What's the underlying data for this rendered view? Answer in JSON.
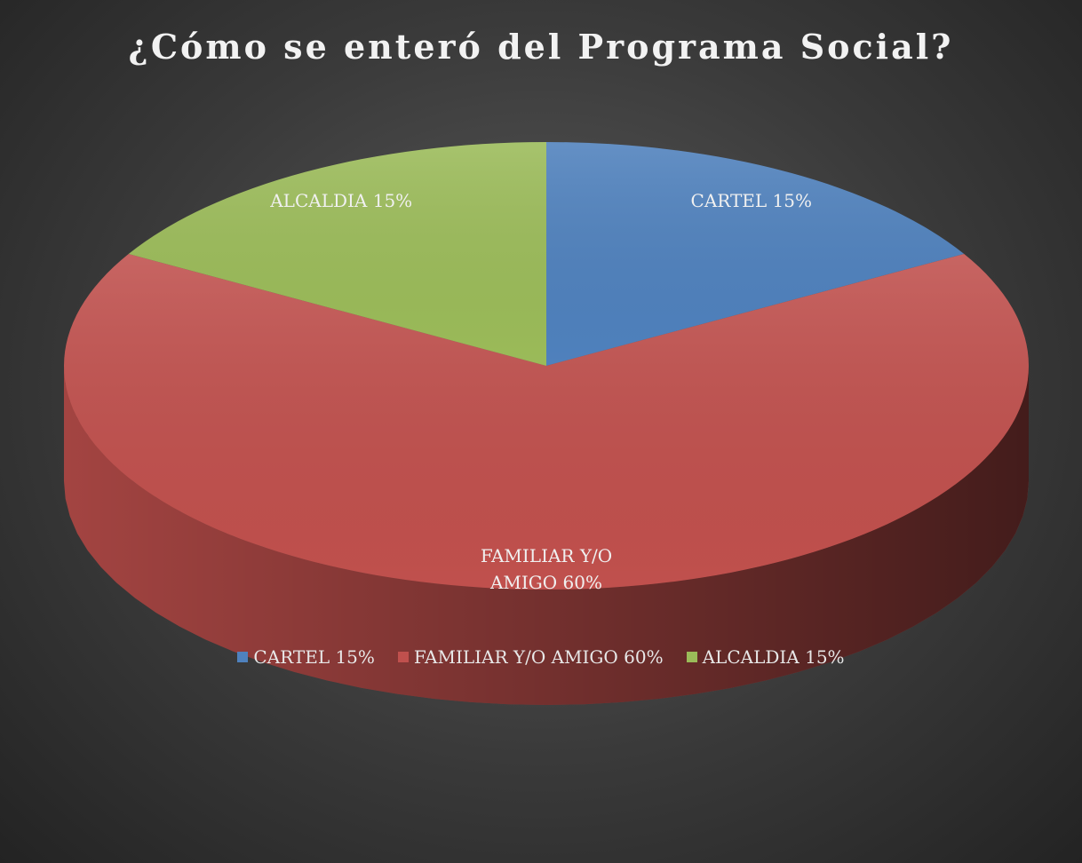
{
  "chart_data": {
    "type": "pie",
    "title": "¿Cómo se enteró del Programa Social?",
    "categories": [
      "CARTEL 15%",
      "FAMILIAR Y/O AMIGO 60%",
      "ALCALDIA 15%"
    ],
    "values": [
      15,
      60,
      15
    ],
    "colors": [
      "#4f81bd",
      "#c0504d",
      "#9bbb59"
    ],
    "legend": "bottom"
  }
}
